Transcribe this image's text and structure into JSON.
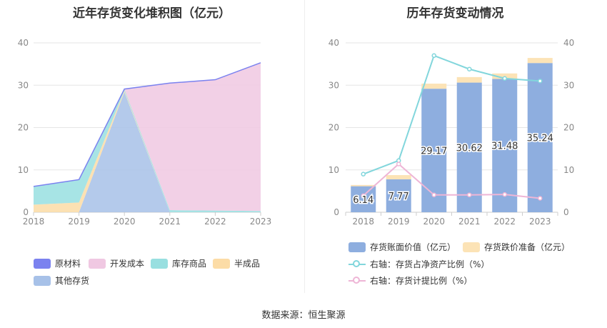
{
  "source": "数据来源：恒生聚源",
  "colors": {
    "raw_material": "#7b82ef",
    "development_cost": "#f0c8e2",
    "inventory_goods": "#98dfe0",
    "semi_finished": "#fcdca6",
    "other_inventory": "#a7c1e8",
    "book_value": "#8eaedf",
    "impairment": "#fce3b6",
    "ratio_assets_line": "#82d6dc",
    "ratio_provision_line": "#eeb5d6",
    "grid": "#e6e6e6",
    "axis_text": "#888888"
  },
  "chart_data": [
    {
      "type": "area",
      "stacked": true,
      "title": "近年存货变化堆积图（亿元）",
      "x": [
        "2018",
        "2019",
        "2020",
        "2021",
        "2022",
        "2023"
      ],
      "ylim": [
        0,
        40
      ],
      "yticks": [
        0,
        10,
        20,
        30,
        40
      ],
      "series": [
        {
          "name": "原材料",
          "key": "raw_material",
          "values": [
            0,
            0,
            0,
            0,
            0,
            0
          ]
        },
        {
          "name": "开发成本",
          "key": "development_cost",
          "values": [
            0,
            0,
            0,
            30.0,
            30.9,
            35.0
          ]
        },
        {
          "name": "库存商品",
          "key": "inventory_goods",
          "values": [
            4.3,
            5.4,
            0.4,
            0.5,
            0.4,
            0.3
          ]
        },
        {
          "name": "半成品",
          "key": "semi_finished",
          "values": [
            1.8,
            2.3,
            0.3,
            0,
            0,
            0
          ]
        },
        {
          "name": "其他存货",
          "key": "other_inventory",
          "values": [
            0,
            0,
            28.4,
            0,
            0,
            0
          ]
        }
      ]
    },
    {
      "type": "bar+line",
      "title": "历年存货变动情况",
      "x": [
        "2018",
        "2019",
        "2020",
        "2021",
        "2022",
        "2023"
      ],
      "ylim": [
        0,
        40
      ],
      "yticks": [
        0,
        10,
        20,
        30,
        40
      ],
      "y2lim": [
        0,
        40
      ],
      "y2ticks": [
        0,
        10,
        20,
        30,
        40
      ],
      "bars": [
        {
          "name": "存货账面价值（亿元）",
          "key": "book_value",
          "values": [
            6.14,
            7.77,
            29.17,
            30.62,
            31.48,
            35.24
          ],
          "labels": [
            "6.14",
            "7.77",
            "29.17",
            "30.62",
            "31.48",
            "35.24"
          ]
        },
        {
          "name": "存货跌价准备（亿元）",
          "key": "impairment",
          "values": [
            0.3,
            1.0,
            1.2,
            1.3,
            1.3,
            1.2
          ]
        }
      ],
      "lines": [
        {
          "name": "右轴：存货占净资产比例（%）",
          "key": "ratio_assets_line",
          "values": [
            9.0,
            12.2,
            37.0,
            33.8,
            31.6,
            31.0
          ]
        },
        {
          "name": "右轴：存货计提比例（%）",
          "key": "ratio_provision_line",
          "values": [
            3.9,
            11.4,
            4.1,
            4.1,
            4.2,
            3.3
          ]
        }
      ]
    }
  ]
}
